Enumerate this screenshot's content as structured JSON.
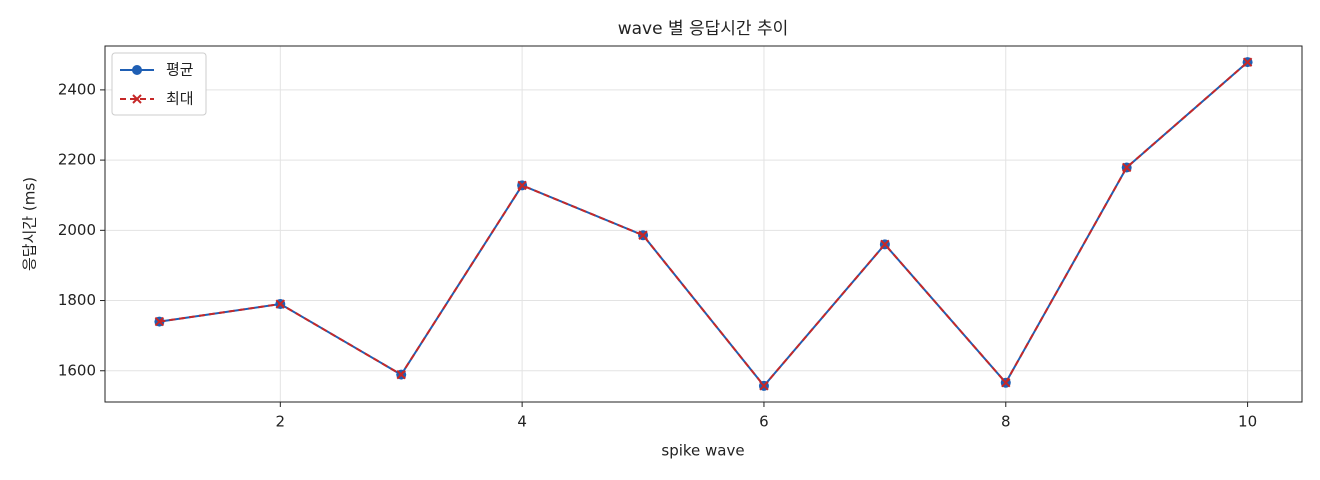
{
  "chart_data": {
    "type": "line",
    "title": "wave 별 응답시간 추이",
    "x_label": "spike wave",
    "y_label": "응답시간 (ms)",
    "x": [
      1,
      2,
      3,
      4,
      5,
      6,
      7,
      8,
      9,
      10
    ],
    "series": [
      {
        "name": "평균",
        "color": "#1f5fb4",
        "marker": "circle",
        "dash": false,
        "values": [
          1740,
          1790,
          1589,
          2128,
          1986,
          1557,
          1960,
          1566,
          2179,
          2479
        ]
      },
      {
        "name": "최대",
        "color": "#c62828",
        "marker": "x",
        "dash": true,
        "values": [
          1740,
          1790,
          1589,
          2128,
          1986,
          1557,
          1960,
          1566,
          2179,
          2479
        ]
      }
    ],
    "xlim": [
      0.55,
      10.45
    ],
    "ylim": [
      1511,
      2525
    ],
    "xticks": [
      2,
      4,
      6,
      8,
      10
    ],
    "yticks": [
      1600,
      1800,
      2000,
      2200,
      2400
    ],
    "grid": true,
    "legend": "upper-left"
  }
}
